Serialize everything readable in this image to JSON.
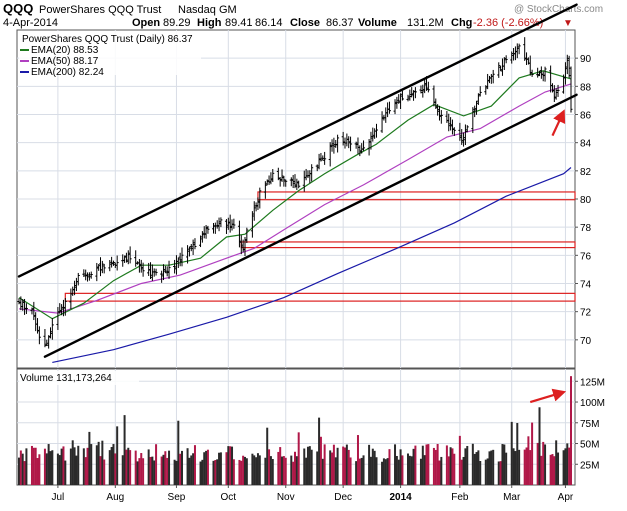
{
  "header": {
    "symbol": "QQQ",
    "name": "PowerShares QQQ Trust",
    "exchange": "Nasdaq GM",
    "watermark": "@ StockCharts.com",
    "date": "4-Apr-2014",
    "open_label": "Open",
    "open": "89.29",
    "high_label": "High",
    "high": "89.41",
    "low": "86.14",
    "close_label": "Close",
    "close": "86.37",
    "volume_label": "Volume",
    "volume": "131.2M",
    "chg_label": "Chg",
    "chg": "-2.36 (-2.66%)",
    "down_marker": "▼"
  },
  "colors": {
    "candle": "#000000",
    "ema20": "#1e7a1e",
    "ema50": "#b040c0",
    "ema200": "#1a1aa8",
    "channel": "#000000",
    "gap_box": "#dd2020",
    "annotation_arrow": "#dd2020",
    "volume_up": "#2a2a2a",
    "volume_down": "#b01848",
    "background": "#ffffff",
    "axis": "#555555",
    "grid": "#d8dde6"
  },
  "chart_data": [
    {
      "type": "candlestick",
      "title": "PowerShares QQQ Trust (Daily) 86.37",
      "legend": [
        {
          "key": "ema20",
          "label": "EMA(20) 88.53"
        },
        {
          "key": "ema50",
          "label": "EMA(50) 88.17"
        },
        {
          "key": "ema200",
          "label": "EMA(200) 82.24"
        }
      ],
      "ylim": [
        68,
        92
      ],
      "yticks": [
        70,
        72,
        74,
        76,
        78,
        80,
        82,
        84,
        86,
        88,
        90
      ],
      "grid": true,
      "x_start_date": "2013-06-10",
      "x_end_date": "2014-04-04",
      "xticks": [
        {
          "label": "Jul",
          "date": "2013-07-01",
          "bold": false
        },
        {
          "label": "Aug",
          "date": "2013-08-01",
          "bold": false
        },
        {
          "label": "Sep",
          "date": "2013-09-03",
          "bold": false
        },
        {
          "label": "Oct",
          "date": "2013-10-01",
          "bold": false
        },
        {
          "label": "Nov",
          "date": "2013-11-01",
          "bold": false
        },
        {
          "label": "Dec",
          "date": "2013-12-02",
          "bold": false
        },
        {
          "label": "2014",
          "date": "2014-01-02",
          "bold": true
        },
        {
          "label": "Feb",
          "date": "2014-02-03",
          "bold": false
        },
        {
          "label": "Mar",
          "date": "2014-03-03",
          "bold": false
        },
        {
          "label": "Apr",
          "date": "2014-04-01",
          "bold": false
        }
      ],
      "close_points": [
        [
          "2013-06-10",
          72.6
        ],
        [
          "2013-06-17",
          72.0
        ],
        [
          "2013-06-20",
          70.6
        ],
        [
          "2013-06-24",
          69.5
        ],
        [
          "2013-07-01",
          71.8
        ],
        [
          "2013-07-08",
          73.5
        ],
        [
          "2013-07-12",
          74.4
        ],
        [
          "2013-07-19",
          74.8
        ],
        [
          "2013-07-26",
          75.2
        ],
        [
          "2013-08-02",
          75.6
        ],
        [
          "2013-08-09",
          76.0
        ],
        [
          "2013-08-16",
          75.1
        ],
        [
          "2013-08-23",
          74.6
        ],
        [
          "2013-08-30",
          74.9
        ],
        [
          "2013-09-06",
          75.8
        ],
        [
          "2013-09-13",
          76.8
        ],
        [
          "2013-09-20",
          77.8
        ],
        [
          "2013-09-27",
          78.3
        ],
        [
          "2013-10-04",
          78.0
        ],
        [
          "2013-10-09",
          76.3
        ],
        [
          "2013-10-11",
          77.6
        ],
        [
          "2013-10-18",
          80.4
        ],
        [
          "2013-10-25",
          81.6
        ],
        [
          "2013-11-01",
          81.3
        ],
        [
          "2013-11-08",
          81.0
        ],
        [
          "2013-11-15",
          82.1
        ],
        [
          "2013-11-22",
          83.1
        ],
        [
          "2013-11-29",
          84.2
        ],
        [
          "2013-12-06",
          84.0
        ],
        [
          "2013-12-13",
          83.5
        ],
        [
          "2013-12-20",
          85.1
        ],
        [
          "2013-12-31",
          87.0
        ],
        [
          "2014-01-10",
          87.5
        ],
        [
          "2014-01-17",
          88.0
        ],
        [
          "2014-01-24",
          85.7
        ],
        [
          "2014-01-31",
          85.0
        ],
        [
          "2014-02-05",
          84.2
        ],
        [
          "2014-02-14",
          87.5
        ],
        [
          "2014-02-21",
          88.8
        ],
        [
          "2014-02-28",
          89.8
        ],
        [
          "2014-03-07",
          90.7
        ],
        [
          "2014-03-14",
          88.9
        ],
        [
          "2014-03-21",
          89.0
        ],
        [
          "2014-03-26",
          87.2
        ],
        [
          "2014-03-31",
          88.6
        ],
        [
          "2014-04-02",
          89.6
        ],
        [
          "2014-04-03",
          88.7
        ],
        [
          "2014-04-04",
          86.37
        ]
      ],
      "ema20_points": [
        [
          "2013-06-10",
          73.0
        ],
        [
          "2013-06-28",
          71.5
        ],
        [
          "2013-07-15",
          72.6
        ],
        [
          "2013-07-31",
          74.2
        ],
        [
          "2013-08-15",
          75.3
        ],
        [
          "2013-08-30",
          75.3
        ],
        [
          "2013-09-16",
          75.8
        ],
        [
          "2013-09-30",
          77.3
        ],
        [
          "2013-10-10",
          77.5
        ],
        [
          "2013-10-25",
          79.2
        ],
        [
          "2013-11-08",
          80.6
        ],
        [
          "2013-11-22",
          81.8
        ],
        [
          "2013-12-09",
          83.1
        ],
        [
          "2013-12-20",
          83.9
        ],
        [
          "2014-01-06",
          85.6
        ],
        [
          "2014-01-20",
          86.7
        ],
        [
          "2014-02-05",
          85.9
        ],
        [
          "2014-02-20",
          86.6
        ],
        [
          "2014-03-07",
          88.6
        ],
        [
          "2014-03-20",
          89.1
        ],
        [
          "2014-04-04",
          88.53
        ]
      ],
      "ema50_points": [
        [
          "2013-06-10",
          72.2
        ],
        [
          "2013-07-01",
          71.9
        ],
        [
          "2013-07-22",
          72.8
        ],
        [
          "2013-08-15",
          74.0
        ],
        [
          "2013-09-05",
          74.6
        ],
        [
          "2013-09-30",
          75.8
        ],
        [
          "2013-10-15",
          76.5
        ],
        [
          "2013-11-01",
          77.9
        ],
        [
          "2013-11-22",
          79.6
        ],
        [
          "2013-12-13",
          81.0
        ],
        [
          "2014-01-06",
          82.8
        ],
        [
          "2014-01-27",
          84.4
        ],
        [
          "2014-02-14",
          85.0
        ],
        [
          "2014-03-07",
          86.6
        ],
        [
          "2014-03-21",
          87.6
        ],
        [
          "2014-04-04",
          88.17
        ]
      ],
      "ema200_points": [
        [
          "2013-06-28",
          68.4
        ],
        [
          "2013-07-31",
          69.3
        ],
        [
          "2013-08-30",
          70.4
        ],
        [
          "2013-09-30",
          71.6
        ],
        [
          "2013-10-31",
          73.0
        ],
        [
          "2013-11-29",
          74.7
        ],
        [
          "2013-12-31",
          76.5
        ],
        [
          "2014-01-31",
          78.3
        ],
        [
          "2014-02-28",
          80.2
        ],
        [
          "2014-03-31",
          81.8
        ],
        [
          "2014-04-04",
          82.24
        ]
      ],
      "channel_lines": [
        {
          "name": "upper",
          "from": [
            "2013-06-10",
            74.5
          ],
          "to": [
            "2014-04-07",
            93.8
          ]
        },
        {
          "name": "lower",
          "from": [
            "2013-06-24",
            68.8
          ],
          "to": [
            "2014-04-07",
            87.4
          ]
        }
      ],
      "gap_zones": [
        {
          "from_date": "2013-07-05",
          "low": 72.75,
          "high": 73.3
        },
        {
          "from_date": "2013-10-08",
          "low": 76.55,
          "high": 76.95
        },
        {
          "from_date": "2013-10-17",
          "low": 79.95,
          "high": 80.5
        }
      ],
      "annotation": {
        "shape": "arrow",
        "from": [
          "2014-03-25",
          84.5
        ],
        "to": [
          "2014-03-31",
          86.2
        ]
      }
    },
    {
      "type": "bar",
      "title": "Volume 131,173,264",
      "ylim": [
        0,
        135
      ],
      "yticks": [
        25,
        50,
        75,
        100,
        125
      ],
      "ytick_labels": [
        "25M",
        "50M",
        "75M",
        "100M",
        "125M"
      ],
      "units": "millions",
      "last_value": 131.2,
      "color_rule": "alternating up/down days, last bar down",
      "annotation": {
        "shape": "arrow",
        "from": [
          "2014-03-13",
          100
        ],
        "to": [
          "2014-03-31",
          112
        ]
      }
    }
  ]
}
